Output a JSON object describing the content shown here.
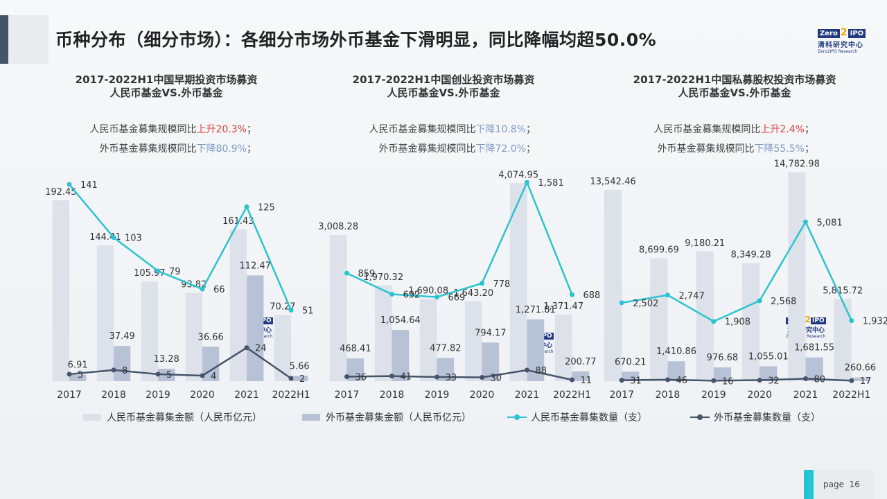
{
  "page_title": "币种分布（细分市场）：各细分市场外币基金下滑明显，同比降幅均超50.0%",
  "logo": {
    "zero": "Zero",
    "two": "2",
    "ipo": "IPO",
    "cn": "清科研究中心",
    "en": "Zero2IPO Research"
  },
  "page_number": {
    "label": "page",
    "value": "16"
  },
  "colors": {
    "rmb_bar": "#dde1ea",
    "usd_bar": "#b7c2d6",
    "rmb_line": "#2bc3d1",
    "usd_line": "#44546a",
    "up": "#e03c3c",
    "down": "#7f9bc9"
  },
  "legend": [
    {
      "label": "人民币基金募集金额（人民币亿元）",
      "kind": "bar",
      "color": "#dde1ea"
    },
    {
      "label": "外币基金募集金额（人民币亿元）",
      "kind": "bar",
      "color": "#b7c2d6"
    },
    {
      "label": "人民币基金募集数量（支）",
      "kind": "line",
      "color": "#2bc3d1"
    },
    {
      "label": "外币基金募集数量（支）",
      "kind": "line",
      "color": "#44546a"
    }
  ],
  "panels": [
    {
      "title_line1": "2017-2022H1中国早期投资市场募资",
      "title_line2": "人民币基金VS.外币基金",
      "note1": {
        "prefix": "人民币基金募集规模同比",
        "change": "上升20.3%",
        "suffix": "；",
        "dir": "up"
      },
      "note2": {
        "prefix": "外币基金募集规模同比",
        "change": "下降80.9%",
        "suffix": "；",
        "dir": "down"
      }
    },
    {
      "title_line1": "2017-2022H1中国创业投资市场募资",
      "title_line2": "人民币基金VS.外币基金",
      "note1": {
        "prefix": "人民币基金募集规模同比",
        "change": "下降10.8%",
        "suffix": "；",
        "dir": "down"
      },
      "note2": {
        "prefix": "外币基金募集规模同比",
        "change": "下降72.0%",
        "suffix": "；",
        "dir": "down"
      }
    },
    {
      "title_line1": "2017-2022H1中国私募股权投资市场募资",
      "title_line2": "人民币基金VS.外币基金",
      "note1": {
        "prefix": "人民币基金募集规模同比",
        "change": "上升2.4%",
        "suffix": "；",
        "dir": "up"
      },
      "note2": {
        "prefix": "外币基金募集规模同比",
        "change": "下降55.5%",
        "suffix": "；",
        "dir": "down"
      }
    }
  ],
  "chart_data": [
    {
      "type": "bar",
      "title": "2017-2022H1中国早期投资市场募资 人民币基金VS.外币基金",
      "categories": [
        "2017",
        "2018",
        "2019",
        "2020",
        "2021",
        "2022H1"
      ],
      "series": [
        {
          "name": "人民币基金募集金额（人民币亿元）",
          "type": "bar",
          "values": [
            192.45,
            144.41,
            105.97,
            93.82,
            161.43,
            70.27
          ],
          "labels": [
            "192.45",
            "144.41",
            "105.97",
            "93.82",
            "161.43",
            "70.27"
          ]
        },
        {
          "name": "外币基金募集金额（人民币亿元）",
          "type": "bar",
          "values": [
            6.91,
            37.49,
            13.28,
            36.66,
            112.47,
            5.66
          ],
          "labels": [
            "6.91",
            "37.49",
            "13.28",
            "36.66",
            "112.47",
            "5.66"
          ]
        },
        {
          "name": "人民币基金募集数量（支）",
          "type": "line",
          "values": [
            141,
            103,
            79,
            66,
            125,
            51
          ],
          "labels": [
            "141",
            "103",
            "79",
            "66",
            "125",
            "51"
          ]
        },
        {
          "name": "外币基金募集数量（支）",
          "type": "line",
          "values": [
            5,
            8,
            5,
            4,
            24,
            2
          ],
          "labels": [
            "5",
            "8",
            "5",
            "4",
            "24",
            "2"
          ]
        }
      ],
      "ylim_amount": [
        0,
        230
      ],
      "ylim_count": [
        0,
        155
      ],
      "grid": false
    },
    {
      "type": "bar",
      "title": "2017-2022H1中国创业投资市场募资 人民币基金VS.外币基金",
      "categories": [
        "2017",
        "2018",
        "2019",
        "2020",
        "2021",
        "2022H1"
      ],
      "series": [
        {
          "name": "人民币基金募集金额（人民币亿元）",
          "type": "bar",
          "values": [
            3008.28,
            1970.32,
            1690.08,
            1643.2,
            4074.95,
            1371.47
          ],
          "labels": [
            "3,008.28",
            "1,970.32",
            "1,690.08",
            "1,643.20",
            "4,074.95",
            "1,371.47"
          ]
        },
        {
          "name": "外币基金募集金额（人民币亿元）",
          "type": "bar",
          "values": [
            468.41,
            1054.64,
            477.82,
            794.17,
            1271.81,
            200.77
          ],
          "labels": [
            "468.41",
            "1,054.64",
            "477.82",
            "794.17",
            "1,271.81",
            "200.77"
          ]
        },
        {
          "name": "人民币基金募集数量（支）",
          "type": "line",
          "values": [
            859,
            692,
            669,
            778,
            1581,
            688
          ],
          "labels": [
            "859",
            "692",
            "669",
            "778",
            "1,581",
            "688"
          ]
        },
        {
          "name": "外币基金募集数量（支）",
          "type": "line",
          "values": [
            36,
            41,
            33,
            30,
            88,
            11
          ],
          "labels": [
            "36",
            "41",
            "33",
            "30",
            "88",
            "11"
          ]
        }
      ],
      "ylim_amount": [
        0,
        4450
      ],
      "ylim_count": [
        0,
        1720
      ],
      "grid": false
    },
    {
      "type": "bar",
      "title": "2017-2022H1中国私募股权投资市场募资 人民币基金VS.外币基金",
      "categories": [
        "2017",
        "2018",
        "2019",
        "2020",
        "2021",
        "2022H1"
      ],
      "series": [
        {
          "name": "人民币基金募集金额（人民币亿元）",
          "type": "bar",
          "values": [
            13542.46,
            8699.69,
            9180.21,
            8349.28,
            14782.98,
            5815.72
          ],
          "labels": [
            "13,542.46",
            "8,699.69",
            "9,180.21",
            "8,349.28",
            "14,782.98",
            "5,815.72"
          ]
        },
        {
          "name": "外币基金募集金额（人民币亿元）",
          "type": "bar",
          "values": [
            670.21,
            1410.86,
            976.68,
            1055.01,
            1681.55,
            260.66
          ],
          "labels": [
            "670.21",
            "1,410.86",
            "976.68",
            "1,055.01",
            "1,681.55",
            "260.66"
          ]
        },
        {
          "name": "人民币基金募集数量（支）",
          "type": "line",
          "values": [
            2502,
            2747,
            1908,
            2568,
            5081,
            1932
          ],
          "labels": [
            "2,502",
            "2,747",
            "1,908",
            "2,568",
            "5,081",
            "1,932"
          ]
        },
        {
          "name": "外币基金募集数量（支）",
          "type": "line",
          "values": [
            31,
            46,
            16,
            32,
            80,
            17
          ],
          "labels": [
            "31",
            "46",
            "16",
            "32",
            "80",
            "17"
          ]
        }
      ],
      "ylim_amount": [
        0,
        15300
      ],
      "ylim_count": [
        0,
        6900
      ],
      "grid": false
    }
  ]
}
